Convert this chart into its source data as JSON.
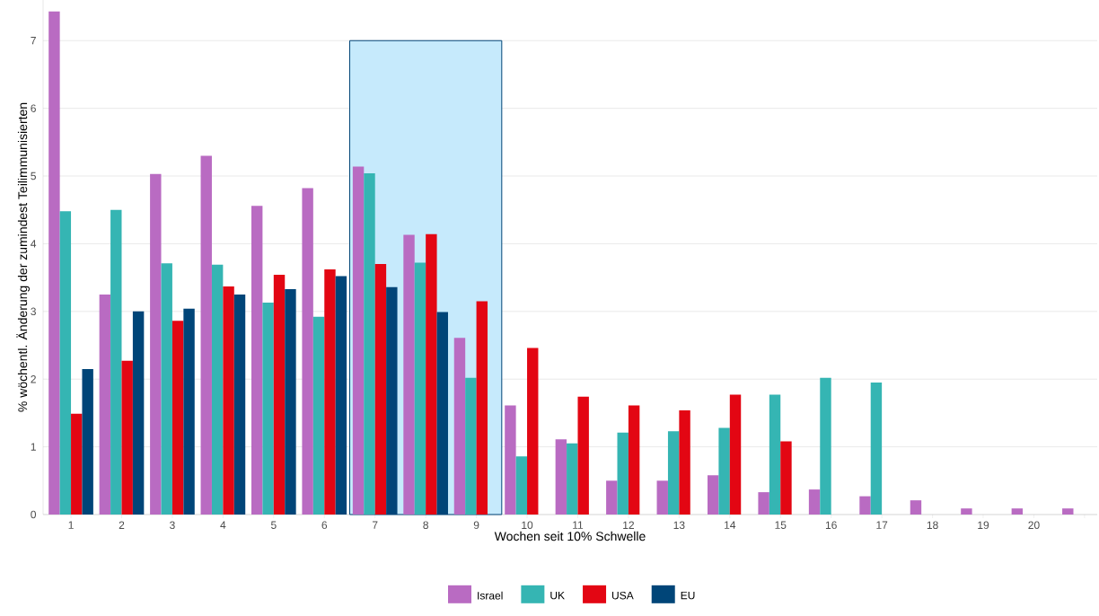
{
  "chart_data": {
    "type": "bar",
    "xlabel": "Wochen seit 10% Schwelle",
    "ylabel": "% wöchentl. Änderung der zumindest Teilimmunisierten",
    "categories": [
      "1",
      "2",
      "3",
      "4",
      "5",
      "6",
      "7",
      "8",
      "9",
      "10",
      "11",
      "12",
      "13",
      "14",
      "15",
      "16",
      "17",
      "18",
      "19",
      "20",
      null
    ],
    "series": [
      {
        "name": "Israel",
        "color": "#b96bc2",
        "values": [
          7.43,
          3.25,
          5.03,
          5.3,
          4.56,
          4.82,
          5.14,
          4.13,
          2.61,
          1.61,
          1.11,
          0.5,
          0.5,
          0.58,
          0.33,
          0.37,
          0.27,
          0.21,
          0.09,
          0.09,
          0.09
        ]
      },
      {
        "name": "UK",
        "color": "#35b5b3",
        "values": [
          4.48,
          4.5,
          3.71,
          3.69,
          3.13,
          2.92,
          5.04,
          3.72,
          2.02,
          0.86,
          1.05,
          1.21,
          1.23,
          1.28,
          1.77,
          2.02,
          1.95,
          null,
          null,
          null,
          null
        ]
      },
      {
        "name": "USA",
        "color": "#e30613",
        "values": [
          1.49,
          2.27,
          2.86,
          3.37,
          3.54,
          3.62,
          3.7,
          4.14,
          3.15,
          2.46,
          1.74,
          1.61,
          1.54,
          1.77,
          1.08,
          null,
          null,
          null,
          null,
          null,
          null
        ]
      },
      {
        "name": "EU",
        "color": "#004578",
        "values": [
          2.15,
          3.0,
          3.04,
          3.25,
          3.33,
          3.52,
          3.36,
          2.99,
          null,
          null,
          null,
          null,
          null,
          null,
          null,
          null,
          null,
          null,
          null,
          null,
          null
        ]
      }
    ],
    "bands": [
      {
        "axis": "x",
        "from": "7",
        "to": "9",
        "color": "#c6eafc"
      }
    ],
    "ylim": [
      0,
      7.6
    ],
    "yticks": [
      0,
      1,
      2,
      3,
      4,
      5,
      6,
      7
    ],
    "grid": "y",
    "legend": "bottom"
  }
}
